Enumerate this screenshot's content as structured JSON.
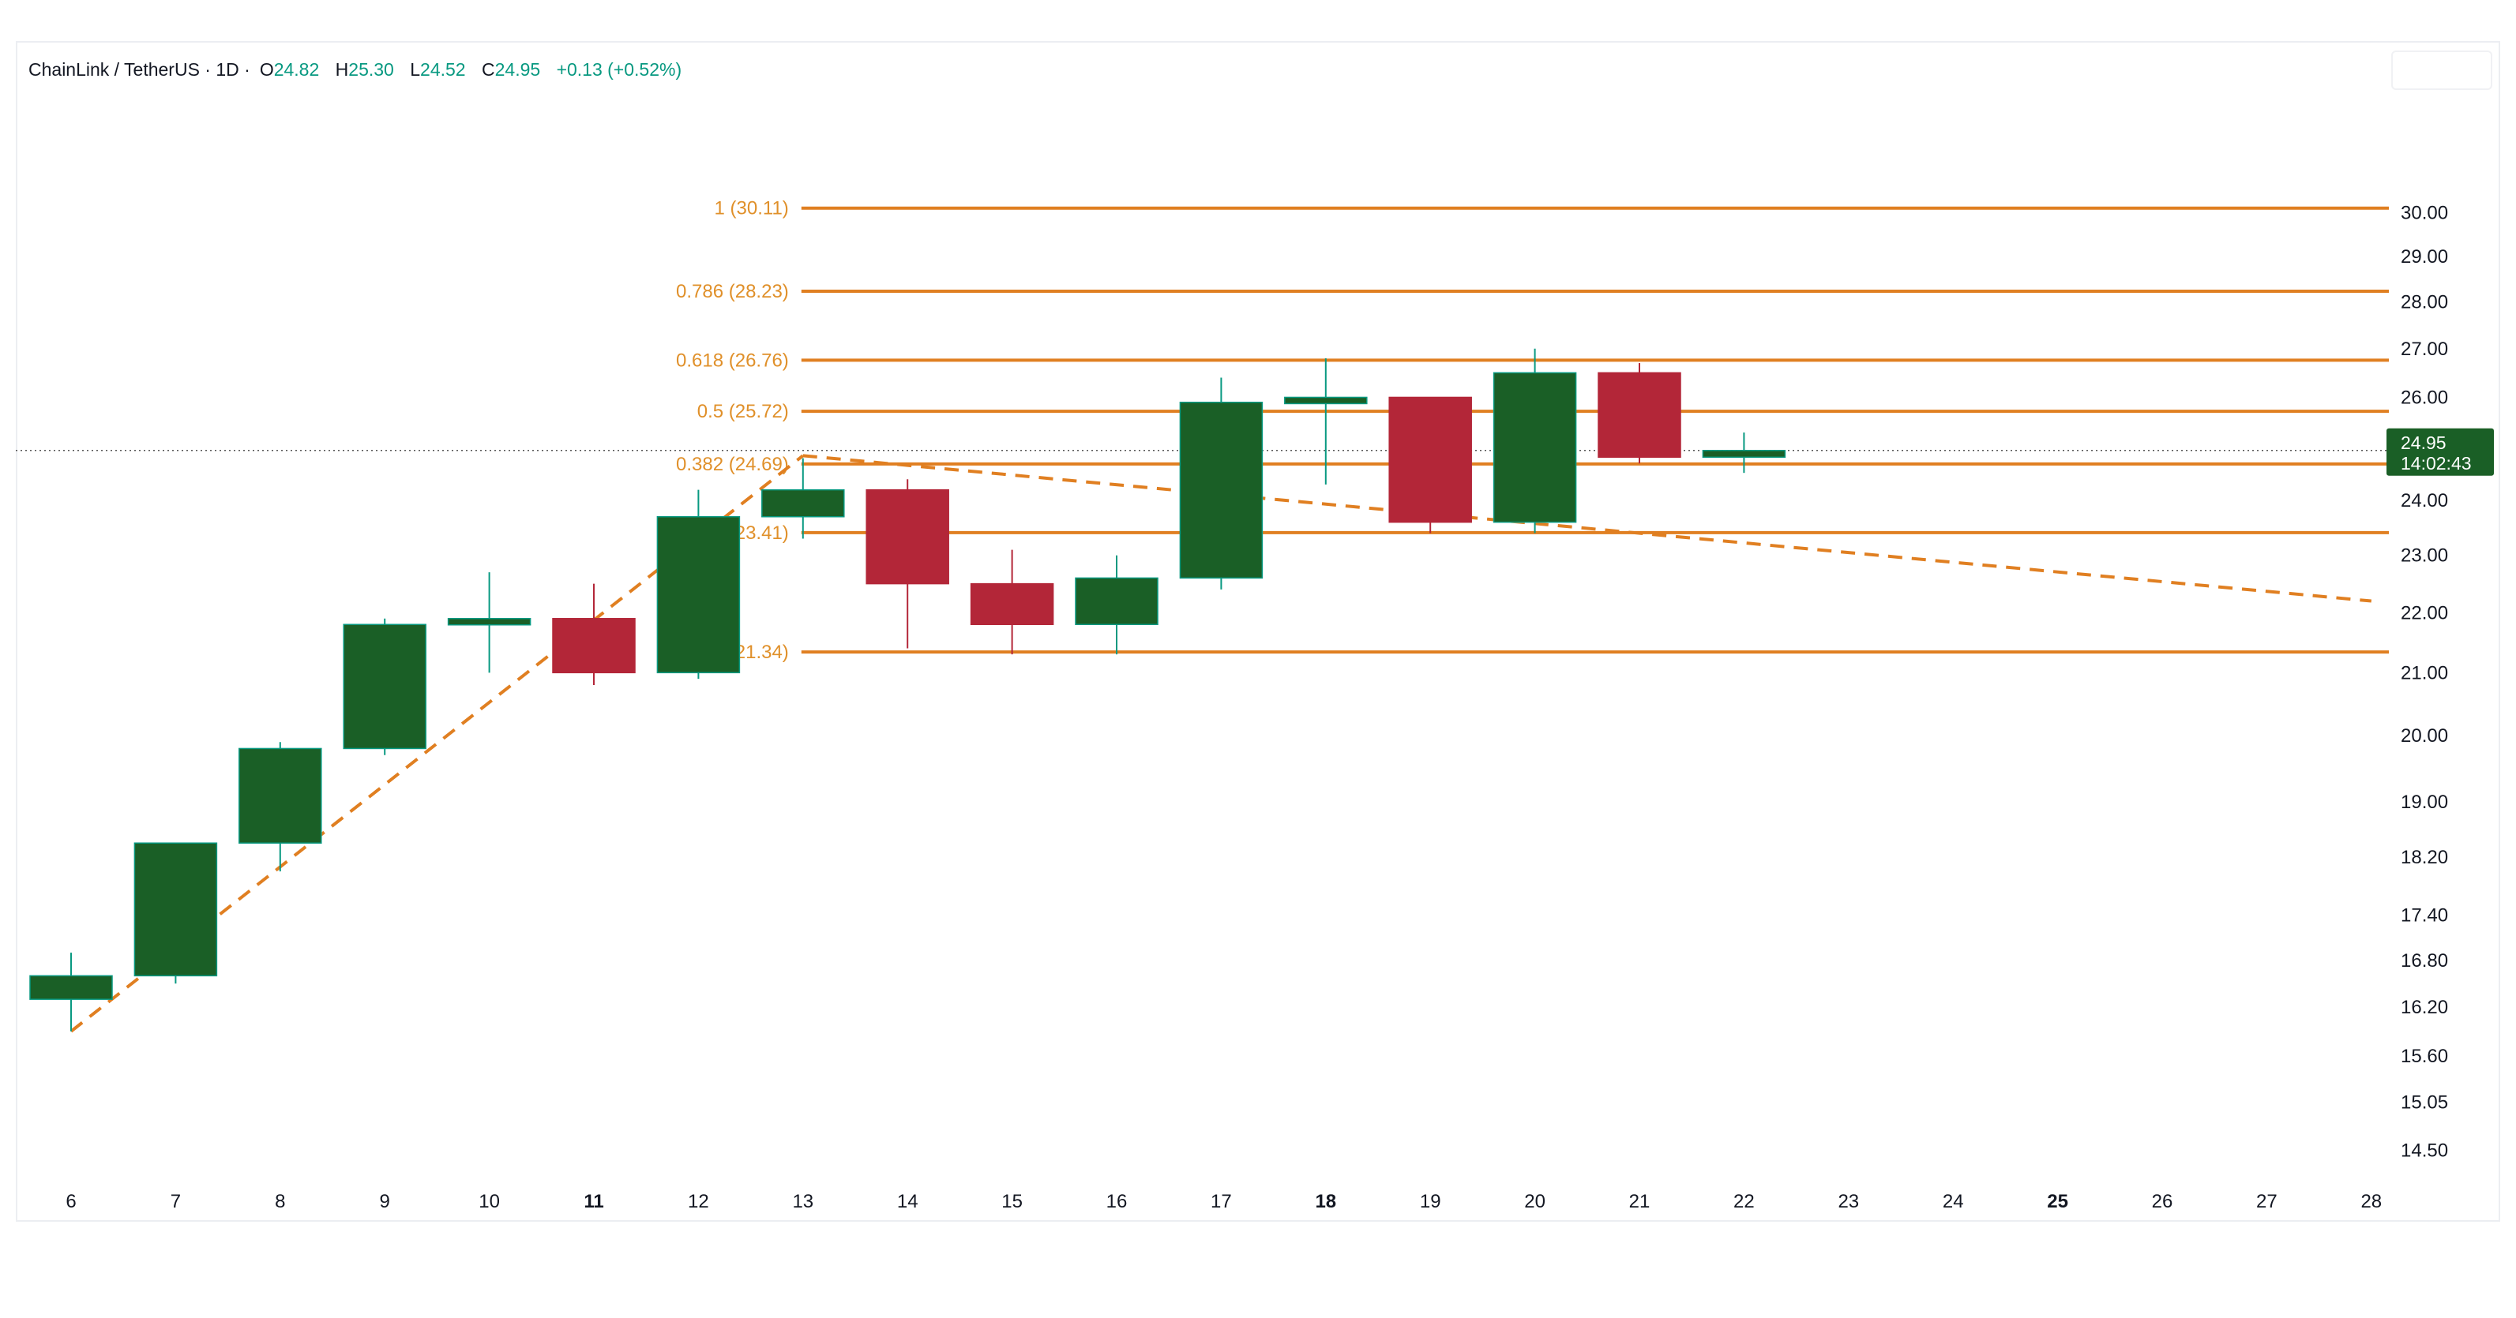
{
  "header": {
    "symbol": "ChainLink / TetherUS · 1D ·",
    "open_label": "O",
    "open": "24.82",
    "high_label": "H",
    "high": "25.30",
    "low_label": "L",
    "low": "24.52",
    "close_label": "C",
    "close": "24.95",
    "change": "+0.13 (+0.52%)"
  },
  "price_tag": {
    "price": "24.95",
    "countdown": "14:02:43"
  },
  "colors": {
    "up": "#1a5f26",
    "down": "#b32638",
    "up_wick": "#089981",
    "down_wick": "#b32638",
    "fib": "#e07f21",
    "fib_text": "#e0902a",
    "tag_bg": "#1a5f26"
  },
  "chart_data": {
    "type": "candlestick",
    "title": "ChainLink / TetherUS · 1D",
    "x_categories": [
      "6",
      "7",
      "8",
      "9",
      "10",
      "11",
      "12",
      "13",
      "14",
      "15",
      "16",
      "17",
      "18",
      "19",
      "20",
      "21",
      "22",
      "23",
      "24",
      "25",
      "26",
      "27",
      "28"
    ],
    "x_bold": [
      "11",
      "18",
      "25"
    ],
    "y_ticks": [
      "30.00",
      "29.00",
      "28.00",
      "27.00",
      "26.00",
      "24.00",
      "23.00",
      "22.00",
      "21.00",
      "20.00",
      "19.00",
      "18.20",
      "17.40",
      "16.80",
      "16.20",
      "15.60",
      "15.05",
      "14.50"
    ],
    "y_scale": "log",
    "y_range": [
      14.3,
      31.5
    ],
    "candles": [
      {
        "x": "6",
        "o": 16.3,
        "h": 16.9,
        "l": 15.9,
        "c": 16.6
      },
      {
        "x": "7",
        "o": 16.6,
        "h": 18.4,
        "l": 16.5,
        "c": 18.4
      },
      {
        "x": "8",
        "o": 18.4,
        "h": 19.9,
        "l": 18.0,
        "c": 19.8
      },
      {
        "x": "9",
        "o": 19.8,
        "h": 21.9,
        "l": 19.7,
        "c": 21.8
      },
      {
        "x": "10",
        "o": 21.8,
        "h": 22.7,
        "l": 21.0,
        "c": 21.9
      },
      {
        "x": "11",
        "o": 21.9,
        "h": 22.5,
        "l": 20.8,
        "c": 21.0
      },
      {
        "x": "12",
        "o": 21.0,
        "h": 24.2,
        "l": 20.9,
        "c": 23.7
      },
      {
        "x": "13",
        "o": 23.7,
        "h": 24.8,
        "l": 23.3,
        "c": 24.2
      },
      {
        "x": "14",
        "o": 24.2,
        "h": 24.4,
        "l": 21.4,
        "c": 22.5
      },
      {
        "x": "15",
        "o": 22.5,
        "h": 23.1,
        "l": 21.3,
        "c": 21.8
      },
      {
        "x": "16",
        "o": 21.8,
        "h": 23.0,
        "l": 21.3,
        "c": 22.6
      },
      {
        "x": "17",
        "o": 22.6,
        "h": 26.4,
        "l": 22.4,
        "c": 25.9
      },
      {
        "x": "18",
        "o": 25.9,
        "h": 26.8,
        "l": 24.3,
        "c": 26.0
      },
      {
        "x": "19",
        "o": 26.0,
        "h": 26.0,
        "l": 23.4,
        "c": 23.6
      },
      {
        "x": "20",
        "o": 23.6,
        "h": 27.0,
        "l": 23.4,
        "c": 26.5
      },
      {
        "x": "21",
        "o": 26.5,
        "h": 26.7,
        "l": 24.7,
        "c": 24.82
      },
      {
        "x": "22",
        "o": 24.82,
        "h": 25.3,
        "l": 24.52,
        "c": 24.95
      }
    ],
    "fib_levels": [
      {
        "label": "1 (30.11)",
        "value": 30.11
      },
      {
        "label": "0.786 (28.23)",
        "value": 28.23
      },
      {
        "label": "0.618 (26.76)",
        "value": 26.76
      },
      {
        "label": "0.5 (25.72)",
        "value": 25.72
      },
      {
        "label": "0.382 (24.69)",
        "value": 24.69
      },
      {
        "label": "0.236 (23.41)",
        "value": 23.41
      },
      {
        "label": "0 (21.34)",
        "value": 21.34
      }
    ],
    "trend_lines": [
      {
        "from": {
          "x": "6",
          "y": 15.9
        },
        "to": {
          "x": "13",
          "y": 24.85
        }
      },
      {
        "from": {
          "x": "13",
          "y": 24.85
        },
        "to": {
          "x": "28",
          "y": 22.2
        }
      }
    ],
    "current_price": 24.95
  }
}
